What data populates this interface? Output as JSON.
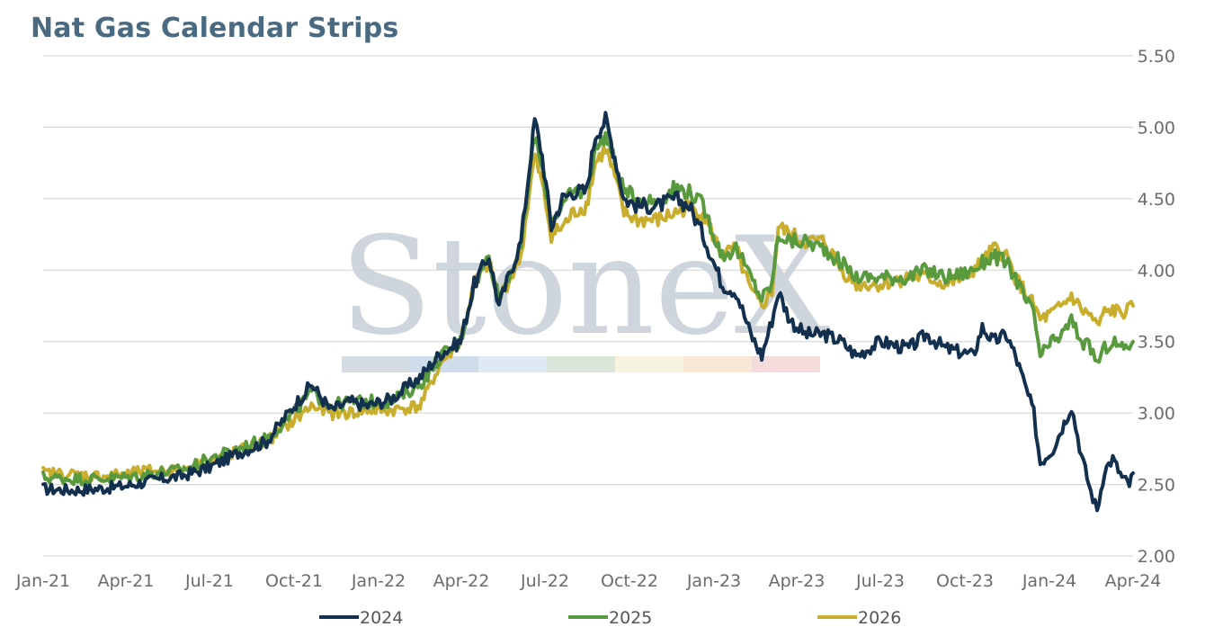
{
  "title": "Nat Gas Calendar Strips",
  "watermark": "StoneX",
  "chart_data": {
    "type": "line",
    "title": "Nat Gas Calendar Strips",
    "xlabel": "",
    "ylabel": "",
    "ylim": [
      2.0,
      5.5
    ],
    "xlim": [
      "2021-01-01",
      "2024-04-01"
    ],
    "y_axis_side": "right",
    "grid": "horizontal",
    "legend_position": "bottom",
    "yticks": [
      "2.00",
      "2.50",
      "3.00",
      "3.50",
      "4.00",
      "4.50",
      "5.00",
      "5.50"
    ],
    "xticks": [
      {
        "label": "Jan-21",
        "date": "2021-01-01"
      },
      {
        "label": "Apr-21",
        "date": "2021-04-01"
      },
      {
        "label": "Jul-21",
        "date": "2021-07-01"
      },
      {
        "label": "Oct-21",
        "date": "2021-10-01"
      },
      {
        "label": "Jan-22",
        "date": "2022-01-01"
      },
      {
        "label": "Apr-22",
        "date": "2022-04-01"
      },
      {
        "label": "Jul-22",
        "date": "2022-07-01"
      },
      {
        "label": "Oct-22",
        "date": "2022-10-01"
      },
      {
        "label": "Jan-23",
        "date": "2023-01-01"
      },
      {
        "label": "Apr-23",
        "date": "2023-04-01"
      },
      {
        "label": "Jul-23",
        "date": "2023-07-01"
      },
      {
        "label": "Oct-23",
        "date": "2023-10-01"
      },
      {
        "label": "Jan-24",
        "date": "2024-01-01"
      },
      {
        "label": "Apr-24",
        "date": "2024-04-01"
      }
    ],
    "series": [
      {
        "name": "2024",
        "color": "#14304f",
        "points": [
          [
            "2021-01-01",
            2.47
          ],
          [
            "2021-02-01",
            2.46
          ],
          [
            "2021-03-01",
            2.47
          ],
          [
            "2021-04-01",
            2.49
          ],
          [
            "2021-05-01",
            2.53
          ],
          [
            "2021-06-01",
            2.56
          ],
          [
            "2021-07-01",
            2.62
          ],
          [
            "2021-08-01",
            2.72
          ],
          [
            "2021-09-01",
            2.8
          ],
          [
            "2021-10-01",
            3.05
          ],
          [
            "2021-10-20",
            3.2
          ],
          [
            "2021-11-10",
            3.02
          ],
          [
            "2021-12-01",
            3.08
          ],
          [
            "2021-12-20",
            3.05
          ],
          [
            "2022-01-15",
            3.1
          ],
          [
            "2022-02-15",
            3.25
          ],
          [
            "2022-03-10",
            3.42
          ],
          [
            "2022-03-31",
            3.5
          ],
          [
            "2022-04-15",
            3.9
          ],
          [
            "2022-05-01",
            4.1
          ],
          [
            "2022-05-12",
            3.75
          ],
          [
            "2022-05-25",
            4.0
          ],
          [
            "2022-06-05",
            4.2
          ],
          [
            "2022-06-12",
            4.6
          ],
          [
            "2022-06-20",
            5.05
          ],
          [
            "2022-06-28",
            4.8
          ],
          [
            "2022-07-08",
            4.3
          ],
          [
            "2022-07-20",
            4.5
          ],
          [
            "2022-08-01",
            4.55
          ],
          [
            "2022-08-15",
            4.55
          ],
          [
            "2022-08-25",
            4.95
          ],
          [
            "2022-09-05",
            5.05
          ],
          [
            "2022-09-15",
            4.8
          ],
          [
            "2022-09-25",
            4.5
          ],
          [
            "2022-10-10",
            4.45
          ],
          [
            "2022-11-01",
            4.45
          ],
          [
            "2022-11-20",
            4.5
          ],
          [
            "2022-12-05",
            4.45
          ],
          [
            "2022-12-20",
            4.25
          ],
          [
            "2023-01-10",
            3.9
          ],
          [
            "2023-01-25",
            3.85
          ],
          [
            "2023-02-10",
            3.55
          ],
          [
            "2023-02-22",
            3.4
          ],
          [
            "2023-03-05",
            3.65
          ],
          [
            "2023-03-12",
            3.85
          ],
          [
            "2023-03-25",
            3.65
          ],
          [
            "2023-04-10",
            3.55
          ],
          [
            "2023-05-01",
            3.55
          ],
          [
            "2023-05-20",
            3.5
          ],
          [
            "2023-06-05",
            3.4
          ],
          [
            "2023-07-01",
            3.5
          ],
          [
            "2023-08-01",
            3.45
          ],
          [
            "2023-08-20",
            3.55
          ],
          [
            "2023-09-10",
            3.45
          ],
          [
            "2023-10-01",
            3.42
          ],
          [
            "2023-10-10",
            3.4
          ],
          [
            "2023-10-20",
            3.6
          ],
          [
            "2023-11-01",
            3.5
          ],
          [
            "2023-11-15",
            3.55
          ],
          [
            "2023-11-25",
            3.4
          ],
          [
            "2023-12-05",
            3.2
          ],
          [
            "2023-12-15",
            3.0
          ],
          [
            "2023-12-22",
            2.65
          ],
          [
            "2024-01-05",
            2.75
          ],
          [
            "2024-01-15",
            2.9
          ],
          [
            "2024-01-25",
            3.05
          ],
          [
            "2024-02-05",
            2.7
          ],
          [
            "2024-02-15",
            2.45
          ],
          [
            "2024-02-22",
            2.32
          ],
          [
            "2024-03-01",
            2.6
          ],
          [
            "2024-03-10",
            2.68
          ],
          [
            "2024-03-20",
            2.55
          ],
          [
            "2024-03-28",
            2.5
          ],
          [
            "2024-04-01",
            2.58
          ]
        ]
      },
      {
        "name": "2025",
        "color": "#5a9a3e",
        "points": [
          [
            "2021-01-01",
            2.55
          ],
          [
            "2021-02-01",
            2.54
          ],
          [
            "2021-03-01",
            2.54
          ],
          [
            "2021-04-01",
            2.55
          ],
          [
            "2021-05-01",
            2.58
          ],
          [
            "2021-06-01",
            2.6
          ],
          [
            "2021-07-01",
            2.68
          ],
          [
            "2021-08-01",
            2.75
          ],
          [
            "2021-09-01",
            2.82
          ],
          [
            "2021-10-01",
            3.0
          ],
          [
            "2021-10-20",
            3.15
          ],
          [
            "2021-11-10",
            3.05
          ],
          [
            "2021-12-01",
            3.08
          ],
          [
            "2021-12-20",
            3.08
          ],
          [
            "2022-01-15",
            3.08
          ],
          [
            "2022-02-15",
            3.2
          ],
          [
            "2022-03-10",
            3.4
          ],
          [
            "2022-03-31",
            3.5
          ],
          [
            "2022-04-15",
            3.9
          ],
          [
            "2022-05-01",
            4.1
          ],
          [
            "2022-05-12",
            3.8
          ],
          [
            "2022-05-25",
            4.0
          ],
          [
            "2022-06-05",
            4.15
          ],
          [
            "2022-06-12",
            4.55
          ],
          [
            "2022-06-20",
            4.95
          ],
          [
            "2022-06-28",
            4.7
          ],
          [
            "2022-07-08",
            4.35
          ],
          [
            "2022-07-20",
            4.45
          ],
          [
            "2022-08-01",
            4.55
          ],
          [
            "2022-08-15",
            4.55
          ],
          [
            "2022-08-25",
            4.85
          ],
          [
            "2022-09-05",
            4.95
          ],
          [
            "2022-09-15",
            4.75
          ],
          [
            "2022-09-25",
            4.55
          ],
          [
            "2022-10-10",
            4.5
          ],
          [
            "2022-11-01",
            4.48
          ],
          [
            "2022-11-20",
            4.58
          ],
          [
            "2022-12-05",
            4.55
          ],
          [
            "2022-12-20",
            4.45
          ],
          [
            "2023-01-10",
            4.1
          ],
          [
            "2023-01-25",
            4.15
          ],
          [
            "2023-02-10",
            3.95
          ],
          [
            "2023-02-22",
            3.8
          ],
          [
            "2023-03-05",
            3.9
          ],
          [
            "2023-03-12",
            4.25
          ],
          [
            "2023-03-25",
            4.2
          ],
          [
            "2023-04-10",
            4.2
          ],
          [
            "2023-05-01",
            4.15
          ],
          [
            "2023-05-20",
            4.05
          ],
          [
            "2023-06-05",
            3.95
          ],
          [
            "2023-07-01",
            3.95
          ],
          [
            "2023-08-01",
            3.95
          ],
          [
            "2023-08-20",
            4.0
          ],
          [
            "2023-09-10",
            3.95
          ],
          [
            "2023-10-01",
            3.98
          ],
          [
            "2023-10-10",
            4.0
          ],
          [
            "2023-10-20",
            4.05
          ],
          [
            "2023-11-01",
            4.1
          ],
          [
            "2023-11-15",
            4.05
          ],
          [
            "2023-11-25",
            3.95
          ],
          [
            "2023-12-05",
            3.8
          ],
          [
            "2023-12-15",
            3.7
          ],
          [
            "2023-12-22",
            3.4
          ],
          [
            "2024-01-05",
            3.5
          ],
          [
            "2024-01-15",
            3.55
          ],
          [
            "2024-01-25",
            3.65
          ],
          [
            "2024-02-05",
            3.5
          ],
          [
            "2024-02-15",
            3.45
          ],
          [
            "2024-02-22",
            3.35
          ],
          [
            "2024-03-01",
            3.45
          ],
          [
            "2024-03-10",
            3.5
          ],
          [
            "2024-03-20",
            3.45
          ],
          [
            "2024-03-28",
            3.48
          ],
          [
            "2024-04-01",
            3.5
          ]
        ]
      },
      {
        "name": "2026",
        "color": "#c9ad2c",
        "points": [
          [
            "2021-01-01",
            2.58
          ],
          [
            "2021-02-01",
            2.57
          ],
          [
            "2021-03-01",
            2.56
          ],
          [
            "2021-04-01",
            2.57
          ],
          [
            "2021-05-01",
            2.6
          ],
          [
            "2021-06-01",
            2.6
          ],
          [
            "2021-07-01",
            2.66
          ],
          [
            "2021-08-01",
            2.73
          ],
          [
            "2021-09-01",
            2.8
          ],
          [
            "2021-10-01",
            2.95
          ],
          [
            "2021-10-20",
            3.05
          ],
          [
            "2021-11-10",
            3.0
          ],
          [
            "2021-12-01",
            3.0
          ],
          [
            "2021-12-20",
            3.02
          ],
          [
            "2022-01-15",
            3.02
          ],
          [
            "2022-02-15",
            3.05
          ],
          [
            "2022-03-10",
            3.35
          ],
          [
            "2022-03-31",
            3.5
          ],
          [
            "2022-04-15",
            3.9
          ],
          [
            "2022-05-01",
            4.05
          ],
          [
            "2022-05-12",
            3.8
          ],
          [
            "2022-05-25",
            3.95
          ],
          [
            "2022-06-05",
            4.1
          ],
          [
            "2022-06-12",
            4.45
          ],
          [
            "2022-06-20",
            4.8
          ],
          [
            "2022-06-28",
            4.6
          ],
          [
            "2022-07-08",
            4.25
          ],
          [
            "2022-07-20",
            4.3
          ],
          [
            "2022-08-01",
            4.4
          ],
          [
            "2022-08-15",
            4.45
          ],
          [
            "2022-08-25",
            4.75
          ],
          [
            "2022-09-05",
            4.85
          ],
          [
            "2022-09-15",
            4.65
          ],
          [
            "2022-09-25",
            4.4
          ],
          [
            "2022-10-10",
            4.35
          ],
          [
            "2022-11-01",
            4.35
          ],
          [
            "2022-11-20",
            4.4
          ],
          [
            "2022-12-05",
            4.45
          ],
          [
            "2022-12-20",
            4.4
          ],
          [
            "2023-01-10",
            4.1
          ],
          [
            "2023-01-25",
            4.15
          ],
          [
            "2023-02-10",
            3.85
          ],
          [
            "2023-02-22",
            3.75
          ],
          [
            "2023-03-05",
            3.85
          ],
          [
            "2023-03-12",
            4.3
          ],
          [
            "2023-03-25",
            4.25
          ],
          [
            "2023-04-10",
            4.2
          ],
          [
            "2023-05-01",
            4.2
          ],
          [
            "2023-05-20",
            4.0
          ],
          [
            "2023-06-05",
            3.9
          ],
          [
            "2023-07-01",
            3.9
          ],
          [
            "2023-08-01",
            3.95
          ],
          [
            "2023-08-20",
            3.95
          ],
          [
            "2023-09-10",
            3.9
          ],
          [
            "2023-10-01",
            3.95
          ],
          [
            "2023-10-10",
            4.0
          ],
          [
            "2023-10-20",
            4.05
          ],
          [
            "2023-11-01",
            4.15
          ],
          [
            "2023-11-15",
            4.1
          ],
          [
            "2023-11-25",
            3.95
          ],
          [
            "2023-12-05",
            3.85
          ],
          [
            "2023-12-15",
            3.75
          ],
          [
            "2023-12-22",
            3.65
          ],
          [
            "2024-01-05",
            3.7
          ],
          [
            "2024-01-15",
            3.75
          ],
          [
            "2024-01-25",
            3.82
          ],
          [
            "2024-02-05",
            3.72
          ],
          [
            "2024-02-15",
            3.68
          ],
          [
            "2024-02-22",
            3.6
          ],
          [
            "2024-03-01",
            3.7
          ],
          [
            "2024-03-10",
            3.72
          ],
          [
            "2024-03-20",
            3.7
          ],
          [
            "2024-03-28",
            3.72
          ],
          [
            "2024-04-01",
            3.75
          ]
        ]
      }
    ]
  }
}
